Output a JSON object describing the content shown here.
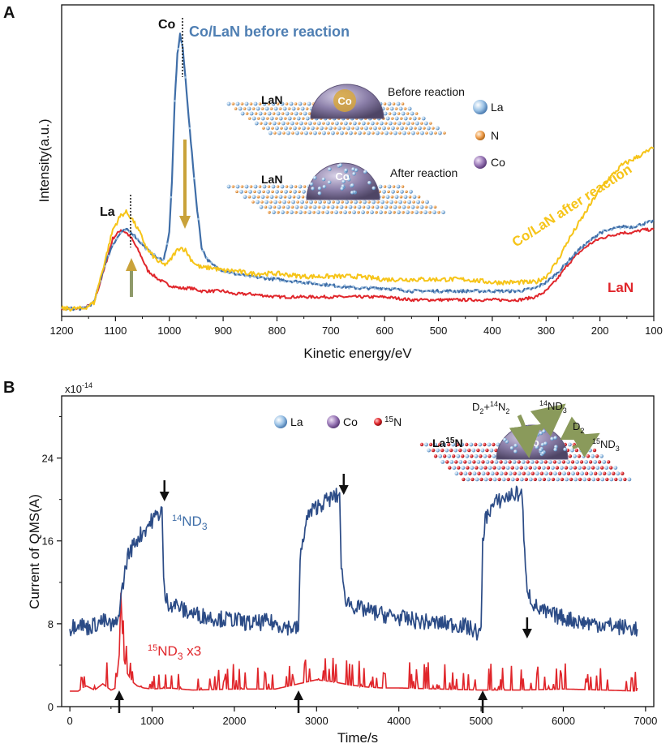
{
  "panels": {
    "a": "A",
    "b": "B"
  },
  "colors": {
    "blue": "#3f6ea8",
    "yellow": "#f6c418",
    "red": "#e0262b",
    "navy": "#2b4b86",
    "arrow_olive": "#b8962e",
    "arrow_green": "#8a9a5b",
    "la_sphere": "#9cc3e6",
    "n_sphere": "#f0a050",
    "co_sphere": "#9b7ab8"
  },
  "chart_data": [
    {
      "type": "line",
      "title": "",
      "xlabel": "Kinetic energy/eV",
      "ylabel": "Intensity(a.u.)",
      "xlim": [
        1200,
        100
      ],
      "ylim": [
        0,
        100
      ],
      "x_reversed": true,
      "xticks": [
        "1200",
        "1100",
        "1000",
        "900",
        "800",
        "700",
        "600",
        "500",
        "400",
        "300",
        "200",
        "100"
      ],
      "series": [
        {
          "name": "Co/LaN before reaction",
          "color": "#3f6ea8",
          "x": [
            1200,
            1160,
            1140,
            1120,
            1105,
            1090,
            1080,
            1070,
            1055,
            1040,
            1020,
            1010,
            1000,
            995,
            990,
            985,
            980,
            975,
            970,
            960,
            950,
            940,
            930,
            920,
            900,
            880,
            850,
            800,
            750,
            700,
            650,
            600,
            550,
            500,
            450,
            400,
            350,
            320,
            300,
            280,
            260,
            240,
            220,
            200,
            180,
            160,
            140,
            120,
            100
          ],
          "y": [
            1,
            1,
            3,
            16,
            23,
            27,
            28,
            27,
            24,
            21,
            18,
            18,
            27,
            45,
            72,
            88,
            95,
            90,
            80,
            58,
            38,
            22,
            18,
            16,
            14,
            13,
            12,
            11,
            10,
            9,
            8,
            8,
            7,
            7,
            7,
            7,
            7,
            8,
            10,
            13,
            17,
            21,
            24,
            27,
            28,
            29,
            29,
            30,
            31
          ]
        },
        {
          "name": "Co/LaN after reaction",
          "color": "#f6c418",
          "x": [
            1200,
            1160,
            1140,
            1120,
            1105,
            1090,
            1080,
            1070,
            1055,
            1040,
            1020,
            1010,
            1000,
            990,
            980,
            970,
            960,
            950,
            940,
            920,
            900,
            880,
            850,
            800,
            750,
            700,
            650,
            600,
            550,
            500,
            450,
            400,
            350,
            320,
            300,
            280,
            260,
            240,
            220,
            200,
            180,
            160,
            140,
            120,
            100
          ],
          "y": [
            1,
            1,
            3,
            17,
            28,
            33,
            34,
            32,
            27,
            21,
            17,
            16,
            17,
            20,
            22,
            21,
            18,
            16,
            15,
            15,
            14,
            14,
            13,
            13,
            12,
            12,
            12,
            11,
            11,
            11,
            11,
            10,
            10,
            10,
            12,
            17,
            24,
            30,
            36,
            42,
            46,
            50,
            52,
            54,
            56
          ]
        },
        {
          "name": "LaN",
          "color": "#e0262b",
          "x": [
            1200,
            1160,
            1140,
            1120,
            1105,
            1090,
            1080,
            1070,
            1055,
            1040,
            1020,
            1000,
            980,
            960,
            940,
            920,
            900,
            880,
            850,
            800,
            750,
            700,
            650,
            600,
            550,
            500,
            450,
            400,
            350,
            320,
            300,
            280,
            260,
            240,
            220,
            200,
            180,
            160,
            140,
            120,
            100
          ],
          "y": [
            1,
            1,
            3,
            15,
            25,
            28,
            27,
            25,
            20,
            14,
            11,
            9,
            8,
            8,
            7,
            7,
            7,
            6,
            6,
            5,
            5,
            5,
            5,
            5,
            4,
            4,
            4,
            4,
            4,
            5,
            7,
            11,
            16,
            20,
            23,
            25,
            26,
            27,
            27,
            28,
            28
          ]
        }
      ],
      "labels": {
        "co_peak": "Co",
        "la_peak": "La",
        "before": "Co/LaN before reaction",
        "after": "Co/LaN after reaction",
        "lan": "LaN"
      },
      "inset": {
        "lan_top": "LaN",
        "lan_bottom": "LaN",
        "co_top": "Co",
        "co_bottom": "Co",
        "before_reaction": "Before reaction",
        "after_reaction": "After reaction",
        "legend": [
          "La",
          "N",
          "Co"
        ]
      }
    },
    {
      "type": "line",
      "title": "",
      "xlabel": "Time/s",
      "ylabel": "Current of QMS(A)",
      "y_multiplier": "x10",
      "y_multiplier_exp": "-14",
      "xlim": [
        -100,
        7100
      ],
      "ylim": [
        0,
        30
      ],
      "xticks": [
        "0",
        "1000",
        "2000",
        "3000",
        "4000",
        "5000",
        "6000",
        "7000"
      ],
      "yticks": [
        "0",
        "8",
        "16",
        "24"
      ],
      "series": [
        {
          "name": "14ND3",
          "color": "#2b4b86",
          "x": [
            0,
            100,
            200,
            300,
            400,
            500,
            580,
            600,
            650,
            700,
            800,
            900,
            1000,
            1100,
            1120,
            1140,
            1160,
            1200,
            1300,
            1400,
            1600,
            1800,
            2000,
            2200,
            2400,
            2600,
            2780,
            2800,
            2850,
            2900,
            3000,
            3100,
            3200,
            3280,
            3300,
            3320,
            3350,
            3400,
            3500,
            3600,
            3800,
            4000,
            4200,
            4400,
            4600,
            4800,
            5000,
            5020,
            5050,
            5100,
            5200,
            5300,
            5400,
            5500,
            5520,
            5550,
            5600,
            5650,
            5700,
            5800,
            6000,
            6200,
            6400,
            6600,
            6800,
            6900
          ],
          "y": [
            7.5,
            8.2,
            7.6,
            7.9,
            8.3,
            7.8,
            8.0,
            9.5,
            12,
            14.5,
            16,
            17,
            18,
            18.8,
            19.2,
            12,
            10.5,
            10,
            9.8,
            9.2,
            8.8,
            8.5,
            8.4,
            8.0,
            8.2,
            7.8,
            7.5,
            14,
            17,
            18.5,
            19.3,
            19.8,
            20.2,
            20.4,
            14,
            11.5,
            10.5,
            10,
            9.5,
            9.3,
            8.9,
            8.6,
            8.3,
            8.1,
            8.0,
            7.8,
            7.0,
            16,
            18,
            19,
            19.8,
            20.2,
            20.5,
            20.6,
            16,
            12,
            10.5,
            9.8,
            9.4,
            9.0,
            8.6,
            8.2,
            8.0,
            7.8,
            7.6,
            7.5
          ]
        },
        {
          "name": "15ND3 x3",
          "color": "#e0262b",
          "x": [
            0,
            100,
            200,
            300,
            400,
            500,
            560,
            600,
            620,
            640,
            660,
            700,
            760,
            820,
            900,
            1000,
            1200,
            1500,
            2000,
            2500,
            2780,
            3000,
            3200,
            3400,
            3600,
            3800,
            4000,
            4500,
            5000,
            5500,
            6000,
            6500,
            6900
          ],
          "y": [
            1.5,
            1.5,
            2.0,
            1.6,
            2.2,
            1.6,
            1.8,
            5,
            11,
            7,
            4.5,
            3.2,
            2.4,
            2.0,
            1.8,
            1.7,
            1.8,
            1.6,
            1.7,
            1.7,
            2.2,
            2.6,
            2.4,
            2.1,
            1.9,
            1.8,
            1.8,
            1.7,
            1.6,
            1.6,
            1.7,
            1.6,
            1.5
          ]
        }
      ],
      "arrows_down_at": [
        1150,
        3330,
        5560
      ],
      "arrows_up_at": [
        600,
        2780,
        5020
      ],
      "labels": {
        "nd3_14_pre": "14",
        "nd3_14_main": "ND",
        "nd3_14_sub": "3",
        "nd3_15_pre": "15",
        "nd3_15_main": "ND",
        "nd3_15_sub": "3",
        "nd3_15_suffix": " x3"
      },
      "inset": {
        "legend_la": "La",
        "legend_co": "Co",
        "legend_n_pre": "15",
        "legend_n_main": "N",
        "la15n_a": "La",
        "la15n_b": "15",
        "la15n_c": "N",
        "co": "Co",
        "reactant_a": "D",
        "reactant_b": "2",
        "reactant_c": "+",
        "reactant_d": "14",
        "reactant_e": "N",
        "reactant_f": "2",
        "prod1_a": "14",
        "prod1_b": "ND",
        "prod1_c": "3",
        "prod2_a": "D",
        "prod2_b": "2",
        "prod3_a": "15",
        "prod3_b": "ND",
        "prod3_c": "3"
      }
    }
  ]
}
